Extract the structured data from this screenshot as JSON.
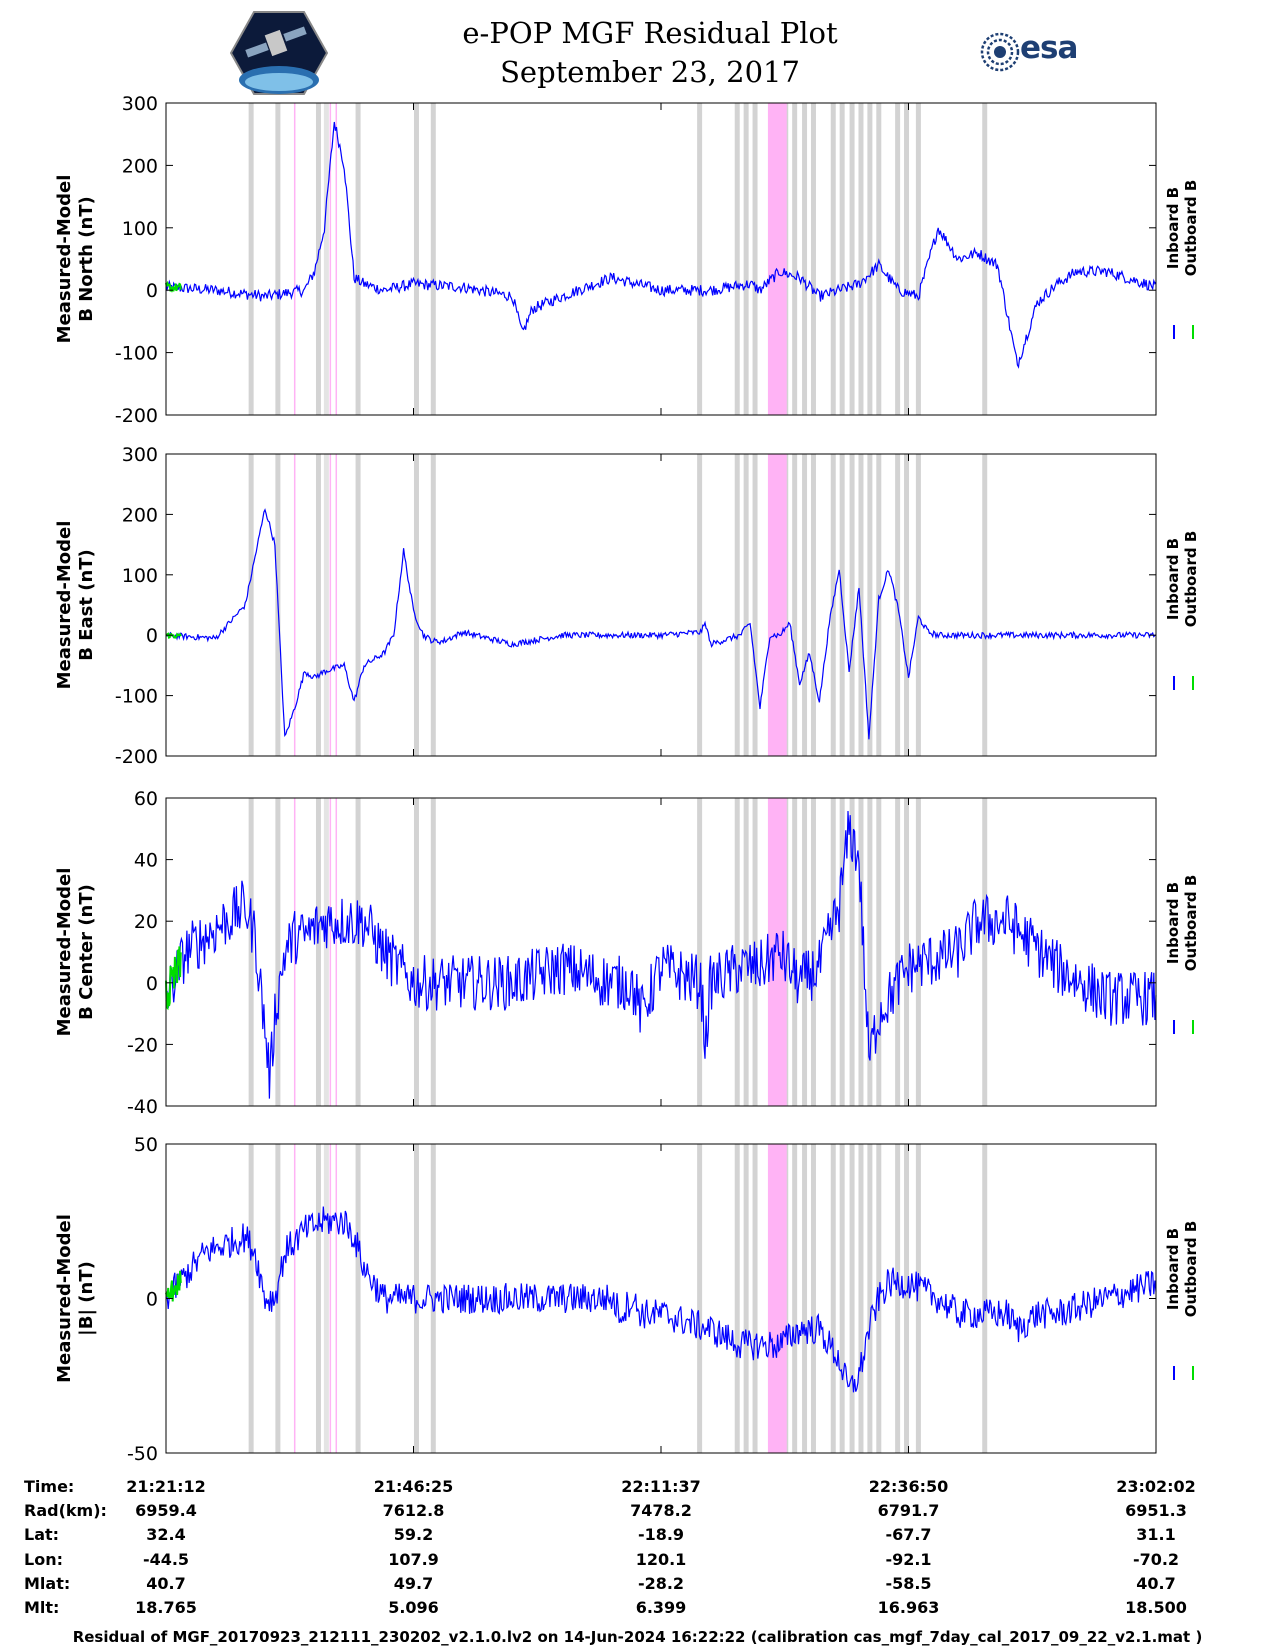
{
  "header": {
    "title_line1": "e-POP MGF Residual Plot",
    "title_line2": "September 23, 2017",
    "logo_left_icon": "cassiope-mission-patch-icon",
    "logo_right_text": "esa"
  },
  "colors": {
    "inboard": "#0000ff",
    "outboard": "#00dd00",
    "gray_band": "#d3d3d3",
    "pink_band": "#ffb3f5"
  },
  "chart_data": [
    {
      "type": "line",
      "ylabel_line1": "Measured-Model",
      "ylabel_line2": "B North (nT)",
      "ylim": [
        -200,
        300
      ],
      "yticks": [
        "300",
        "200",
        "100",
        "0",
        "-100",
        "-200"
      ],
      "legend": [
        "Inboard B",
        "Outboard B"
      ],
      "series": [
        {
          "name": "Inboard B",
          "color": "#0000ff",
          "x": [
            0,
            5,
            10,
            14,
            15,
            16,
            17,
            18,
            19,
            20,
            22,
            25,
            30,
            35,
            36,
            37,
            40,
            45,
            50,
            55,
            59,
            60,
            62,
            64,
            66,
            68,
            70,
            72,
            74,
            76,
            78,
            80,
            82,
            84,
            86,
            88,
            90,
            92,
            95,
            100
          ],
          "y": [
            5,
            0,
            -10,
            0,
            30,
            100,
            270,
            200,
            20,
            10,
            0,
            10,
            5,
            -10,
            -70,
            -30,
            -10,
            20,
            0,
            0,
            10,
            0,
            30,
            20,
            -10,
            0,
            10,
            40,
            0,
            -10,
            100,
            50,
            60,
            40,
            -120,
            -20,
            10,
            30,
            30,
            5
          ],
          "noise": 9
        }
      ]
    },
    {
      "type": "line",
      "ylabel_line1": "Measured-Model",
      "ylabel_line2": "B East (nT)",
      "ylim": [
        -200,
        300
      ],
      "yticks": [
        "300",
        "200",
        "100",
        "0",
        "-100",
        "-200"
      ],
      "legend": [
        "Inboard B",
        "Outboard B"
      ],
      "series": [
        {
          "name": "Inboard B",
          "color": "#0000ff",
          "x": [
            0,
            5,
            8,
            9,
            10,
            11,
            12,
            13,
            14,
            15,
            16,
            18,
            19,
            20,
            21,
            22,
            23,
            24,
            25,
            26,
            27,
            28,
            30,
            35,
            40,
            50,
            54,
            54.5,
            55,
            58,
            59,
            60,
            61,
            62,
            63,
            64,
            65,
            66,
            67,
            68,
            69,
            70,
            71,
            72,
            73,
            74,
            75,
            76,
            77,
            78,
            80,
            85,
            90,
            100
          ],
          "y": [
            0,
            -5,
            50,
            130,
            210,
            150,
            -170,
            -120,
            -60,
            -70,
            -60,
            -50,
            -110,
            -50,
            -40,
            -30,
            0,
            140,
            40,
            0,
            -10,
            -10,
            5,
            -15,
            0,
            0,
            5,
            20,
            -15,
            0,
            20,
            -120,
            0,
            0,
            20,
            -80,
            -30,
            -110,
            20,
            110,
            -60,
            80,
            -170,
            60,
            110,
            40,
            -70,
            30,
            5,
            0,
            0,
            0,
            0,
            0
          ],
          "noise": 5
        }
      ]
    },
    {
      "type": "line",
      "ylabel_line1": "Measured-Model",
      "ylabel_line2": "B Center (nT)",
      "ylim": [
        -40,
        60
      ],
      "yticks": [
        "60",
        "40",
        "20",
        "0",
        "-20",
        "-40"
      ],
      "legend": [
        "Inboard B",
        "Outboard B"
      ],
      "series": [
        {
          "name": "Inboard B",
          "color": "#0000ff",
          "x": [
            0,
            2,
            4,
            6,
            8,
            9,
            10,
            10.5,
            11,
            12,
            13,
            14,
            16,
            18,
            20,
            22,
            25,
            30,
            35,
            40,
            45,
            47,
            48,
            50,
            54,
            54.5,
            55,
            58,
            60,
            62,
            64,
            66,
            68,
            69,
            70,
            71,
            72,
            75,
            80,
            82,
            85,
            90,
            95,
            100
          ],
          "y": [
            -5,
            10,
            15,
            20,
            25,
            15,
            -15,
            -32,
            -10,
            10,
            15,
            15,
            20,
            20,
            20,
            10,
            0,
            0,
            0,
            5,
            0,
            0,
            -10,
            5,
            0,
            -20,
            0,
            5,
            5,
            10,
            0,
            5,
            25,
            50,
            40,
            -25,
            -10,
            5,
            10,
            20,
            20,
            5,
            -5,
            -5
          ],
          "noise": 9
        }
      ]
    },
    {
      "type": "line",
      "ylabel_line1": "Measured-Model",
      "ylabel_line2": "|B| (nT)",
      "ylim": [
        -50,
        50
      ],
      "yticks": [
        "50",
        "0",
        "-50"
      ],
      "legend": [
        "Inboard B",
        "Outboard B"
      ],
      "series": [
        {
          "name": "Inboard B",
          "color": "#0000ff",
          "x": [
            0,
            4,
            8,
            9,
            10,
            11,
            12,
            14,
            16,
            18,
            19,
            20,
            22,
            25,
            30,
            35,
            40,
            45,
            46,
            47,
            48,
            50,
            55,
            58,
            60,
            62,
            64,
            66,
            68,
            69,
            70,
            71,
            72,
            73,
            75,
            78,
            80,
            85,
            86,
            88,
            90,
            95,
            100
          ],
          "y": [
            0,
            15,
            20,
            15,
            0,
            0,
            15,
            22,
            25,
            25,
            20,
            10,
            0,
            0,
            0,
            0,
            0,
            0,
            -5,
            0,
            -5,
            -5,
            -10,
            -15,
            -15,
            -15,
            -10,
            -10,
            -20,
            -30,
            -25,
            -10,
            0,
            5,
            5,
            0,
            -5,
            -5,
            -10,
            -5,
            -5,
            0,
            5
          ],
          "noise": 5
        }
      ]
    }
  ],
  "bands": {
    "gray_x": [
      8.6,
      11.3,
      15.4,
      19.4,
      25.3,
      27.0,
      53.9,
      57.7,
      58.6,
      59.5,
      62.6,
      63.5,
      64.5,
      65.4,
      67.4,
      68.3,
      69.3,
      70.2,
      71.1,
      72.0,
      73.9,
      74.8,
      76.0,
      82.7
    ],
    "gray_light_x": [
      16.2
    ],
    "pink": [
      [
        60.8,
        62.7
      ]
    ],
    "pink_lines_x": [
      13.0,
      16.6,
      17.2
    ]
  },
  "table": {
    "labels": [
      "Time:",
      "Rad(km):",
      "Lat:",
      "Lon:",
      "Mlat:",
      "Mlt:"
    ],
    "columns": [
      [
        "21:21:12",
        "6959.4",
        "32.4",
        "-44.5",
        "40.7",
        "18.765"
      ],
      [
        "21:46:25",
        "7612.8",
        "59.2",
        "107.9",
        "49.7",
        "5.096"
      ],
      [
        "22:11:37",
        "7478.2",
        "-18.9",
        "120.1",
        "-28.2",
        "6.399"
      ],
      [
        "22:36:50",
        "6791.7",
        "-67.7",
        "-92.1",
        "-58.5",
        "16.963"
      ],
      [
        "23:02:02",
        "6951.3",
        "31.1",
        "-70.2",
        "40.7",
        "18.500"
      ]
    ]
  },
  "footer": "Residual of MGF_20170923_212111_230202_v2.1.0.lv2 on 14-Jun-2024 16:22:22 (calibration cas_mgf_7day_cal_2017_09_22_v2.1.mat )"
}
